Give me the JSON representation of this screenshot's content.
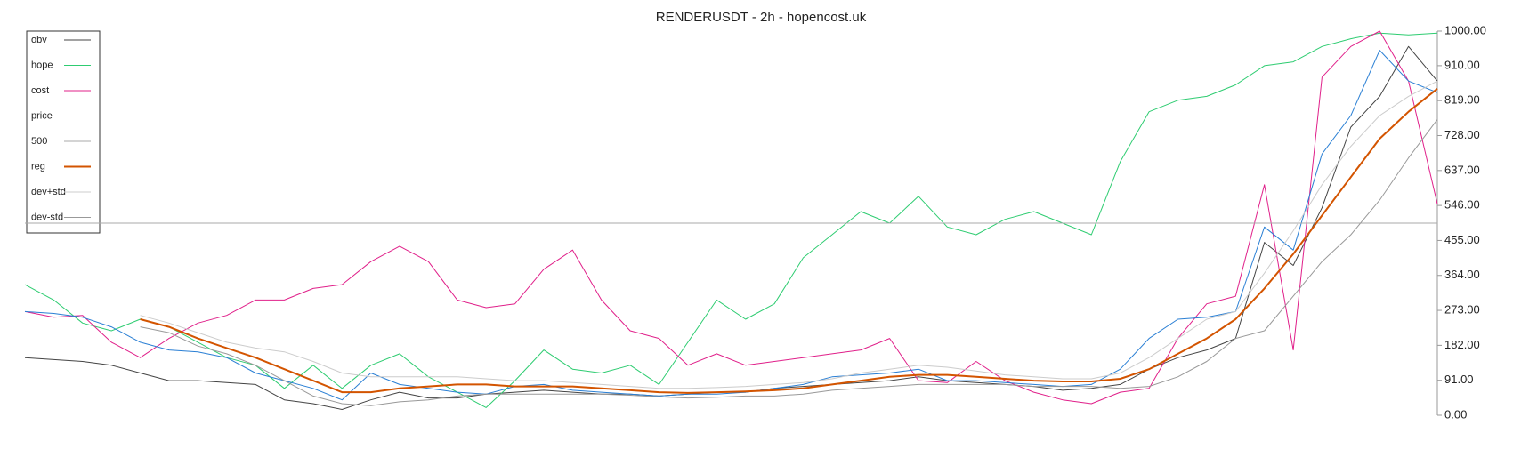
{
  "chart_data": {
    "type": "line",
    "title": "RENDERUSDT - 2h - hopencost.uk",
    "ylim": [
      0,
      1000
    ],
    "yticks": [
      {
        "value": 0,
        "label": "0.00"
      },
      {
        "value": 91,
        "label": "91.00"
      },
      {
        "value": 182,
        "label": "182.00"
      },
      {
        "value": 273,
        "label": "273.00"
      },
      {
        "value": 364,
        "label": "364.00"
      },
      {
        "value": 455,
        "label": "455.00"
      },
      {
        "value": 546,
        "label": "546.00"
      },
      {
        "value": 637,
        "label": "637.00"
      },
      {
        "value": 728,
        "label": "728.00"
      },
      {
        "value": 819,
        "label": "819.00"
      },
      {
        "value": 910,
        "label": "910.00"
      },
      {
        "value": 1000,
        "label": "1000.00"
      }
    ],
    "series": [
      {
        "name": "obv",
        "color": "#444444",
        "line_width": 1,
        "values": [
          150,
          145,
          140,
          130,
          110,
          90,
          90,
          85,
          80,
          40,
          30,
          15,
          40,
          60,
          45,
          45,
          55,
          60,
          65,
          60,
          55,
          55,
          50,
          55,
          60,
          60,
          70,
          75,
          80,
          85,
          90,
          100,
          90,
          85,
          80,
          75,
          65,
          70,
          80,
          120,
          150,
          170,
          200,
          450,
          390,
          540,
          750,
          830,
          960,
          870
        ]
      },
      {
        "name": "hope",
        "color": "#2ecc71",
        "line_width": 1,
        "values": [
          340,
          300,
          240,
          220,
          250,
          230,
          190,
          150,
          130,
          70,
          130,
          70,
          130,
          160,
          100,
          60,
          20,
          90,
          170,
          120,
          110,
          130,
          80,
          190,
          300,
          250,
          290,
          410,
          470,
          530,
          500,
          570,
          490,
          470,
          510,
          530,
          500,
          470,
          660,
          790,
          820,
          830,
          860,
          910,
          920,
          960,
          980,
          995,
          990,
          995
        ]
      },
      {
        "name": "cost",
        "color": "#e0208a",
        "line_width": 1,
        "values": [
          270,
          255,
          260,
          190,
          150,
          200,
          240,
          260,
          300,
          300,
          330,
          340,
          400,
          440,
          400,
          300,
          280,
          290,
          380,
          430,
          300,
          220,
          200,
          130,
          160,
          130,
          140,
          150,
          160,
          170,
          200,
          90,
          85,
          140,
          90,
          60,
          40,
          30,
          60,
          70,
          200,
          290,
          310,
          600,
          170,
          880,
          960,
          1000,
          870,
          550
        ]
      },
      {
        "name": "price",
        "color": "#2a7fd4",
        "line_width": 1,
        "values": [
          270,
          265,
          255,
          230,
          190,
          170,
          165,
          150,
          110,
          90,
          70,
          40,
          110,
          80,
          70,
          60,
          55,
          75,
          80,
          65,
          60,
          55,
          50,
          55,
          55,
          60,
          70,
          80,
          100,
          105,
          110,
          120,
          90,
          90,
          85,
          80,
          75,
          80,
          120,
          200,
          250,
          255,
          270,
          490,
          430,
          680,
          780,
          950,
          870,
          840
        ]
      },
      {
        "name": "500",
        "color": "#aaaaaa",
        "line_width": 1,
        "values": [
          500,
          500,
          500,
          500,
          500,
          500,
          500,
          500,
          500,
          500,
          500,
          500,
          500,
          500,
          500,
          500,
          500,
          500,
          500,
          500,
          500,
          500,
          500,
          500,
          500,
          500,
          500,
          500,
          500,
          500,
          500,
          500,
          500,
          500,
          500,
          500,
          500,
          500,
          500,
          500,
          500,
          500,
          500,
          500,
          500,
          500,
          500,
          500,
          500,
          500
        ]
      },
      {
        "name": "reg",
        "color": "#d35400",
        "line_width": 2,
        "values": [
          null,
          null,
          null,
          null,
          250,
          230,
          200,
          175,
          150,
          120,
          90,
          60,
          60,
          70,
          75,
          80,
          80,
          75,
          75,
          75,
          70,
          65,
          60,
          58,
          60,
          62,
          65,
          70,
          80,
          90,
          100,
          105,
          105,
          100,
          95,
          90,
          88,
          88,
          95,
          120,
          160,
          200,
          250,
          330,
          420,
          520,
          620,
          720,
          790,
          850
        ]
      },
      {
        "name": "dev+std",
        "color": "#cccccc",
        "line_width": 1,
        "values": [
          null,
          null,
          null,
          null,
          260,
          240,
          215,
          190,
          175,
          165,
          140,
          110,
          100,
          100,
          100,
          100,
          95,
          90,
          90,
          85,
          80,
          75,
          70,
          70,
          72,
          75,
          80,
          85,
          95,
          110,
          120,
          130,
          125,
          115,
          105,
          100,
          95,
          95,
          110,
          150,
          200,
          250,
          270,
          370,
          480,
          600,
          700,
          780,
          830,
          870
        ]
      },
      {
        "name": "dev-std",
        "color": "#999999",
        "line_width": 1,
        "values": [
          null,
          null,
          null,
          null,
          230,
          215,
          180,
          160,
          130,
          90,
          50,
          30,
          25,
          35,
          40,
          50,
          55,
          55,
          55,
          55,
          55,
          52,
          48,
          45,
          47,
          50,
          50,
          55,
          65,
          70,
          75,
          80,
          80,
          80,
          80,
          75,
          75,
          75,
          70,
          75,
          100,
          140,
          200,
          220,
          310,
          400,
          470,
          560,
          670,
          770
        ]
      }
    ]
  }
}
